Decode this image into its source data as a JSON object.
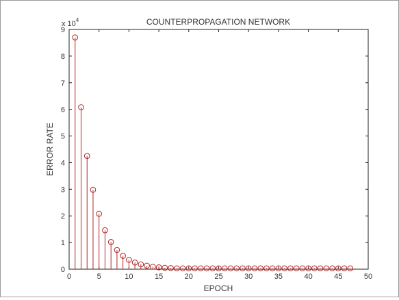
{
  "chart_data": {
    "type": "stem",
    "title": "COUNTERPROPAGATION NETWORK",
    "xlabel": "EPOCH",
    "ylabel": "ERROR RATE",
    "y_multiplier_label": "x 10",
    "y_multiplier_exponent": "4",
    "xlim": [
      0,
      50
    ],
    "ylim": [
      0,
      9
    ],
    "x_ticks": [
      "0",
      "5",
      "10",
      "15",
      "20",
      "25",
      "30",
      "35",
      "40",
      "45",
      "50"
    ],
    "y_ticks": [
      "0",
      "1",
      "2",
      "3",
      "4",
      "5",
      "6",
      "7",
      "8",
      "9"
    ],
    "grid": false,
    "legend": "none",
    "series_color": "#b22222",
    "series": [
      {
        "x": [
          1,
          2,
          3,
          4,
          5,
          6,
          7,
          8,
          9,
          10,
          11,
          12,
          13,
          14,
          15,
          16,
          17,
          18,
          19,
          20,
          21,
          22,
          23,
          24,
          25,
          26,
          27,
          28,
          29,
          30,
          31,
          32,
          33,
          34,
          35,
          36,
          37,
          38,
          39,
          40,
          41,
          42,
          43,
          44,
          45,
          46,
          47
        ],
        "y": [
          8.7,
          6.08,
          4.25,
          2.98,
          2.08,
          1.46,
          1.02,
          0.72,
          0.5,
          0.35,
          0.25,
          0.18,
          0.13,
          0.09,
          0.07,
          0.05,
          0.04,
          0.03,
          0.03,
          0.03,
          0.03,
          0.03,
          0.03,
          0.03,
          0.03,
          0.03,
          0.03,
          0.03,
          0.03,
          0.03,
          0.03,
          0.03,
          0.03,
          0.03,
          0.03,
          0.03,
          0.03,
          0.03,
          0.03,
          0.03,
          0.03,
          0.03,
          0.03,
          0.03,
          0.03,
          0.03,
          0.03
        ]
      }
    ]
  }
}
